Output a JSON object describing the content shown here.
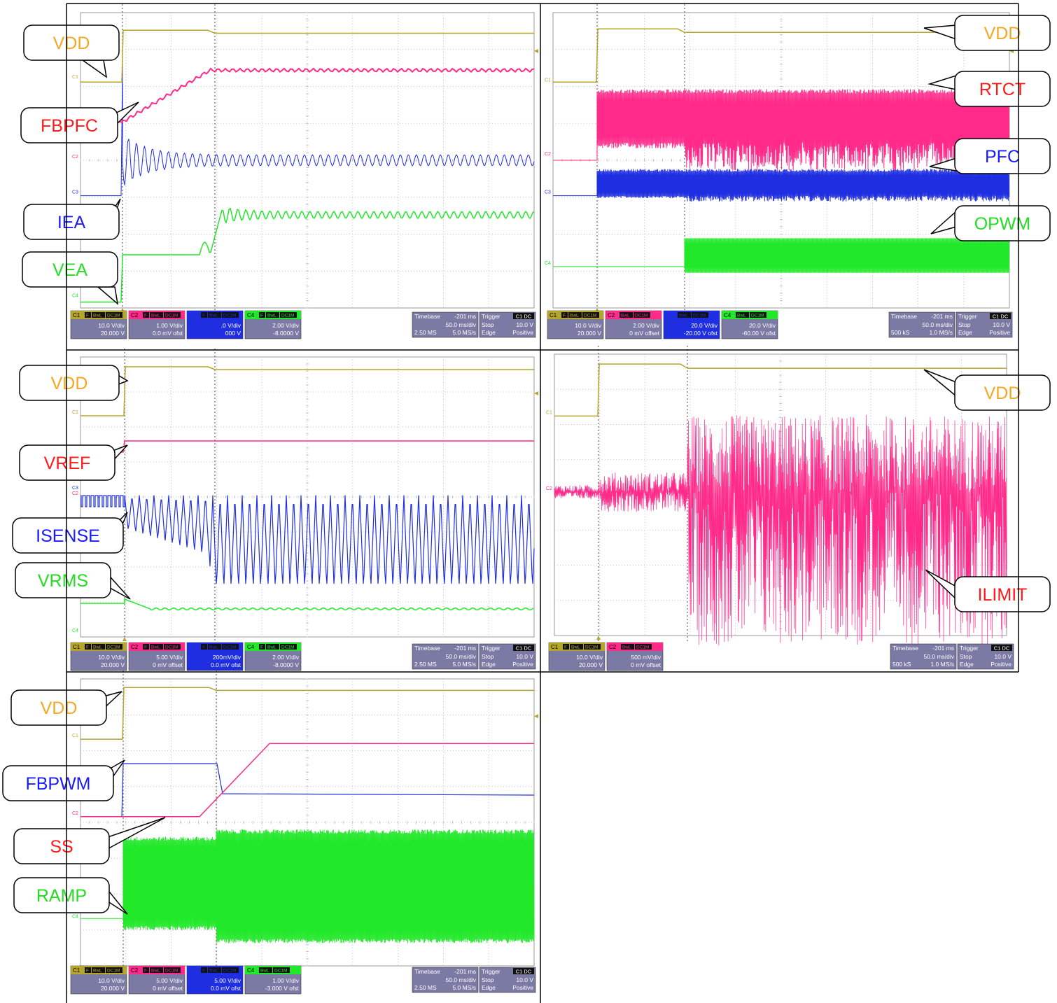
{
  "colors": {
    "ch1": "#b5a52a",
    "ch2": "#ff2a8a",
    "ch3": "#1f2ee0",
    "ch4": "#22e82a",
    "grid": "#b7b7b7",
    "callout_orange": "#f5a623",
    "callout_red": "#ff1a1a",
    "callout_blue": "#1a1aff",
    "callout_green": "#22dd22",
    "status_bg": "#7a7aa4"
  },
  "chart_data": [
    {
      "type": "line",
      "panel": "top-left",
      "x_unit": "ms",
      "series": [
        {
          "name": "VDD",
          "trace": "C1"
        },
        {
          "name": "FBPFC",
          "trace": "C2"
        },
        {
          "name": "IEA",
          "trace": "C3"
        },
        {
          "name": "VEA",
          "trace": "C4"
        }
      ],
      "channels": [
        {
          "ch": "C1",
          "tag": "C1",
          "flags": [
            "F",
            "BwL",
            "DC1M"
          ],
          "vdiv": "10.0 V/div",
          "offset": "20.000 V"
        },
        {
          "ch": "C2",
          "tag": "C2",
          "flags": [
            "F",
            "BwL",
            "DC1M"
          ],
          "vdiv": "1.00 V/div",
          "offset": "0.0 mV ofst"
        },
        {
          "ch": "C3",
          "tag": "",
          "flags": [
            "F",
            "BwL",
            "DC1M"
          ],
          "vdiv": ".0 V/div",
          "offset": "000 V"
        },
        {
          "ch": "C4",
          "tag": "C4",
          "flags": [
            "F",
            "BwL",
            "DC1M"
          ],
          "vdiv": "2.00 V/div",
          "offset": "-8.0000 V"
        }
      ],
      "timebase": {
        "label": "Timebase",
        "delay": "-201 ms",
        "tdiv": "50.0 ms/div",
        "samples": "2.50 MS",
        "rate": "5.0 MS/s"
      },
      "trigger": {
        "label": "Trigger",
        "src": "C1 DC",
        "mode": "Stop",
        "level": "10.0 V",
        "type": "Edge",
        "slope": "Positive"
      }
    },
    {
      "type": "line",
      "panel": "top-right",
      "x_unit": "ms",
      "series": [
        {
          "name": "VDD",
          "trace": "C1"
        },
        {
          "name": "RTCT",
          "trace": "C2"
        },
        {
          "name": "PFC",
          "trace": "C3"
        },
        {
          "name": "OPWM",
          "trace": "C4"
        }
      ],
      "channels": [
        {
          "ch": "C1",
          "tag": "C1",
          "flags": [
            "F",
            "BwL",
            "DC1M"
          ],
          "vdiv": "10.0 V/div",
          "offset": "20.000 V"
        },
        {
          "ch": "C2",
          "tag": "C2",
          "flags": [
            "BwL",
            "DC1M"
          ],
          "vdiv": "2.00 V/div",
          "offset": "0 mV offset"
        },
        {
          "ch": "C3",
          "tag": "",
          "flags": [
            "BwL",
            "DC1M"
          ],
          "vdiv": "20.0 V/div",
          "offset": "-20.00 V ofst"
        },
        {
          "ch": "C4",
          "tag": "C4",
          "flags": [
            "BwL",
            "DC1M"
          ],
          "vdiv": "20.0 V/div",
          "offset": "-60.00 V ofst"
        }
      ],
      "timebase": {
        "label": "Timebase",
        "delay": "-201 ms",
        "tdiv": "50.0 ms/div",
        "samples": "500 kS",
        "rate": "1.0 MS/s"
      },
      "trigger": {
        "label": "Trigger",
        "src": "C1 DC",
        "mode": "Stop",
        "level": "10.0 V",
        "type": "Edge",
        "slope": "Positive"
      }
    },
    {
      "type": "line",
      "panel": "middle-left",
      "x_unit": "ms",
      "series": [
        {
          "name": "VDD",
          "trace": "C1"
        },
        {
          "name": "VREF",
          "trace": "C2"
        },
        {
          "name": "ISENSE",
          "trace": "C3"
        },
        {
          "name": "VRMS",
          "trace": "C4"
        }
      ],
      "channels": [
        {
          "ch": "C1",
          "tag": "C1",
          "flags": [
            "F",
            "BwL",
            "DC1M"
          ],
          "vdiv": "10.0 V/div",
          "offset": "20.000 V"
        },
        {
          "ch": "C2",
          "tag": "C2",
          "flags": [
            "F",
            "BwL",
            "DC1M"
          ],
          "vdiv": "5.00 V/div",
          "offset": "0 mV offset"
        },
        {
          "ch": "C3",
          "tag": "",
          "flags": [
            "F",
            "BwL",
            "DC1M"
          ],
          "vdiv": "200mV/div",
          "offset": "0.0 mV ofst"
        },
        {
          "ch": "C4",
          "tag": "C4",
          "flags": [
            "F",
            "BwL",
            "DC1M"
          ],
          "vdiv": "2.00 V/div",
          "offset": "-8.0000 V"
        }
      ],
      "timebase": {
        "label": "Timebase",
        "delay": "-201 ms",
        "tdiv": "50.0 ms/div",
        "samples": "2.50 MS",
        "rate": "5.0 MS/s"
      },
      "trigger": {
        "label": "Trigger",
        "src": "C1 DC",
        "mode": "Stop",
        "level": "10.0 V",
        "type": "Edge",
        "slope": "Positive"
      }
    },
    {
      "type": "line",
      "panel": "middle-right",
      "x_unit": "ms",
      "series": [
        {
          "name": "VDD",
          "trace": "C1"
        },
        {
          "name": "ILIMIT",
          "trace": "C2"
        }
      ],
      "channels": [
        {
          "ch": "C1",
          "tag": "C1",
          "flags": [
            "F",
            "BwL",
            "DC1M"
          ],
          "vdiv": "10.0 V/div",
          "offset": "20.000 V"
        },
        {
          "ch": "C2",
          "tag": "C2",
          "flags": [
            "BwL",
            "DC1M"
          ],
          "vdiv": "500 mV/div",
          "offset": "0 mV offset"
        }
      ],
      "timebase": {
        "label": "Timebase",
        "delay": "-201 ms",
        "tdiv": "50.0 ms/div",
        "samples": "500 kS",
        "rate": "1.0 MS/s"
      },
      "trigger": {
        "label": "Trigger",
        "src": "C1 DC",
        "mode": "Stop",
        "level": "10.0 V",
        "type": "Edge",
        "slope": "Positive"
      }
    },
    {
      "type": "line",
      "panel": "bottom-left",
      "x_unit": "ms",
      "series": [
        {
          "name": "VDD",
          "trace": "C1"
        },
        {
          "name": "FBPWM",
          "trace": "C3"
        },
        {
          "name": "SS",
          "trace": "C2"
        },
        {
          "name": "RAMP",
          "trace": "C4"
        }
      ],
      "channels": [
        {
          "ch": "C1",
          "tag": "C1",
          "flags": [
            "F",
            "BwL",
            "DC1M"
          ],
          "vdiv": "10.0 V/div",
          "offset": "20.000 V"
        },
        {
          "ch": "C2",
          "tag": "C2",
          "flags": [
            "F",
            "BwL",
            "DC1M"
          ],
          "vdiv": "5.00 V/div",
          "offset": "0 mV offset"
        },
        {
          "ch": "C3",
          "tag": "",
          "flags": [
            "F",
            "BwL",
            "DC1M"
          ],
          "vdiv": "5.00 V/div",
          "offset": "0.0 mV ofst"
        },
        {
          "ch": "C4",
          "tag": "C4",
          "flags": [
            "BwL",
            "DC1M"
          ],
          "vdiv": "1.00 V/div",
          "offset": "-3.000 V ofst"
        }
      ],
      "timebase": {
        "label": "Timebase",
        "delay": "-201 ms",
        "tdiv": "50.0 ms/div",
        "samples": "2.50 MS",
        "rate": "5.0 MS/s"
      },
      "trigger": {
        "label": "Trigger",
        "src": "C1 DC",
        "mode": "Stop",
        "level": "10.0 V",
        "type": "Edge",
        "slope": "Positive"
      }
    }
  ]
}
